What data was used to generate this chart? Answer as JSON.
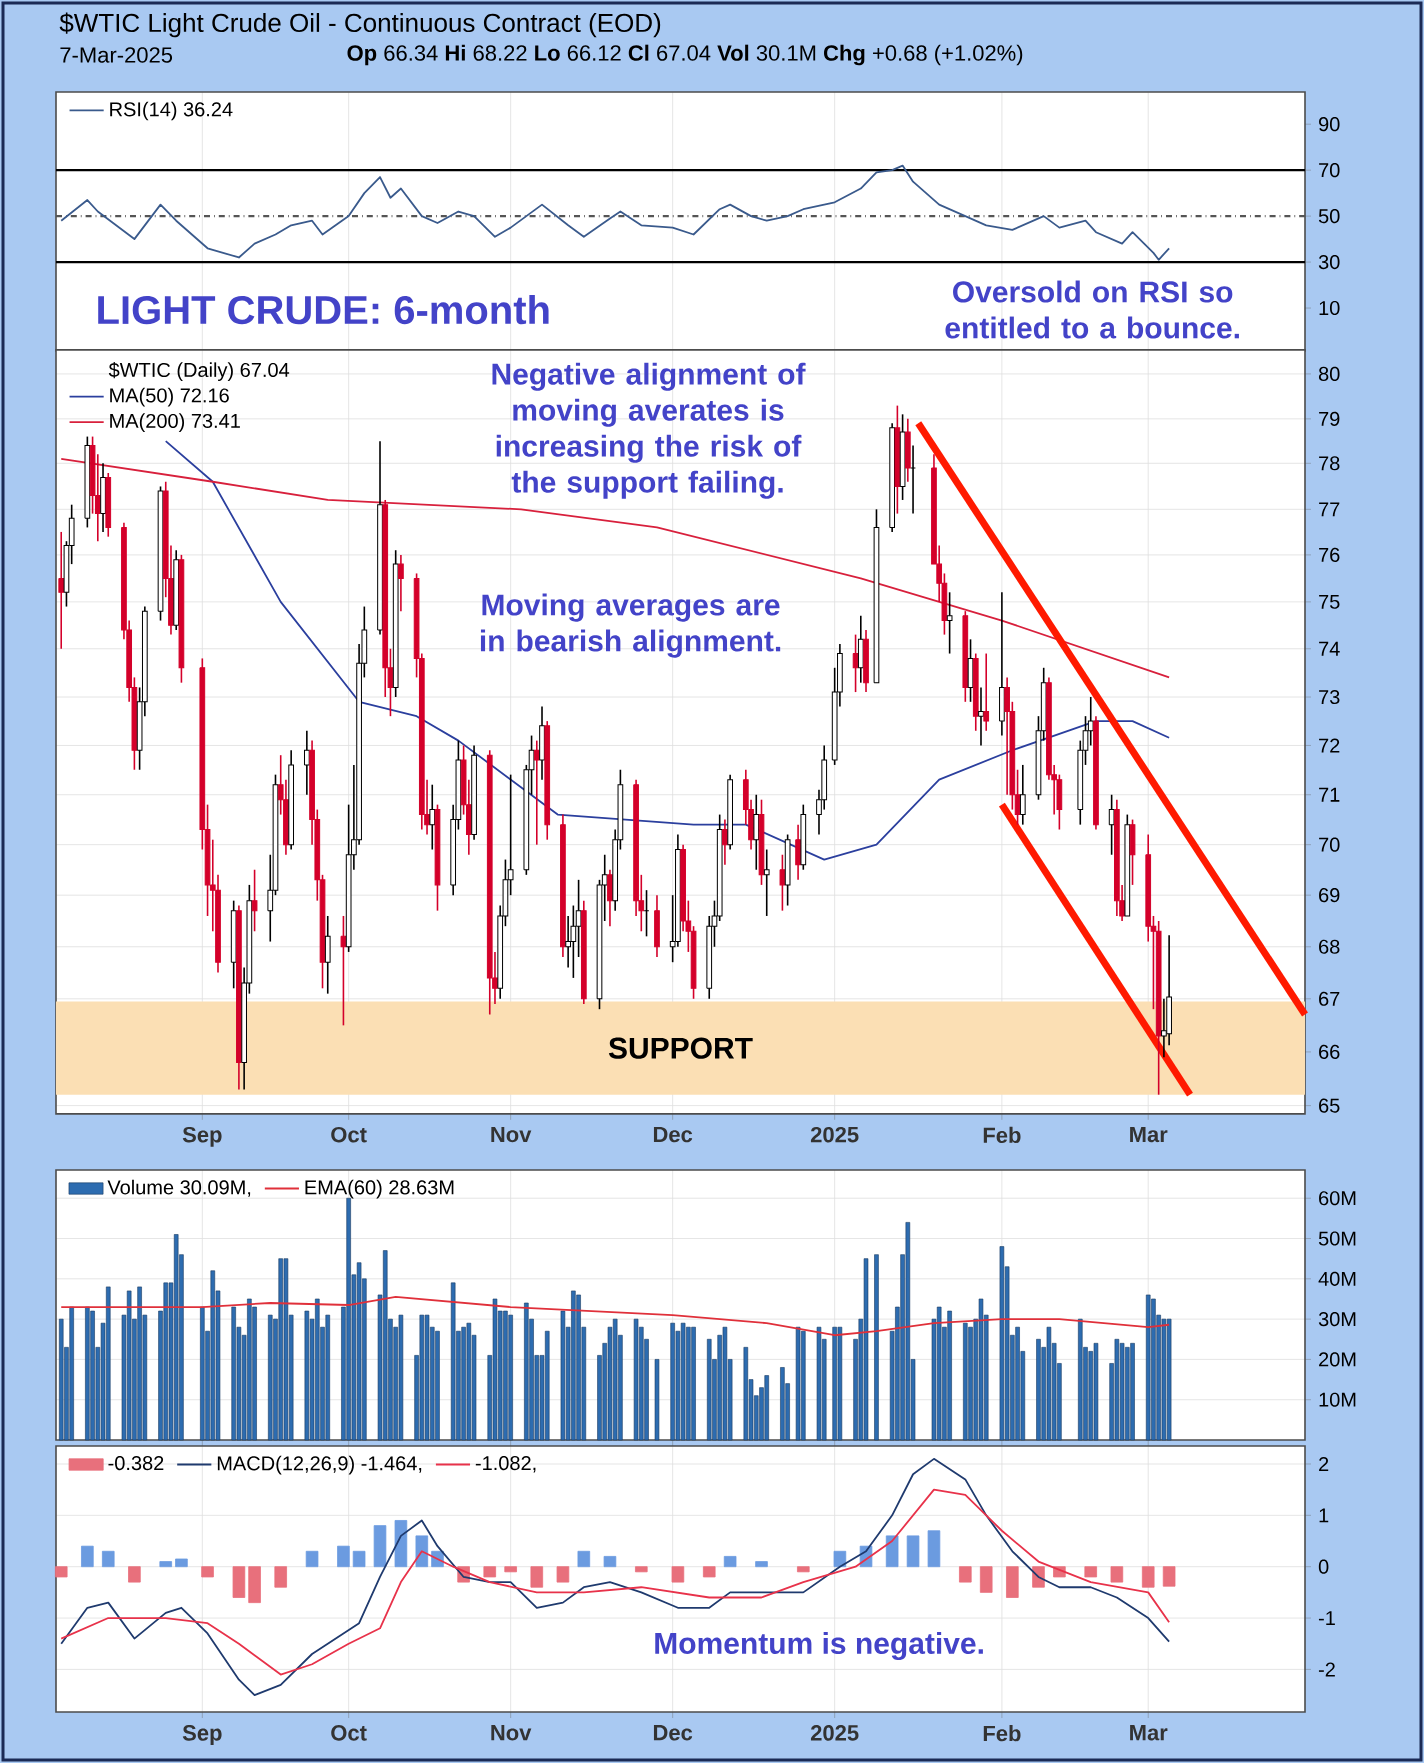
{
  "chart_data": [
    {
      "type": "line",
      "title": "$WTIC Light Crude Oil - Continuous Contract (EOD)",
      "subtitle": "7-Mar-2025",
      "annotations": [
        "**Op** 66.34 **Hi** 68.22 **Lo** 66.12 **Cl** 67.04 **Vol** 30.1M **Chg** +0.68 (+1.02%)",
        "LIGHT CRUDE: 6-month",
        "Oversold on RSI so entitled to a bounce."
      ],
      "xlim": [
        "2024-08-06",
        "2025-04-02"
      ],
      "xticks": [
        {
          "value": "2024-09-03",
          "label": null
        },
        {
          "value": "2024-10-01",
          "label": null
        },
        {
          "value": "2024-11-01",
          "label": null
        },
        {
          "value": "2024-12-02",
          "label": null
        },
        {
          "value": "2025-01-02",
          "label": null
        },
        {
          "value": "2025-02-03",
          "label": null
        },
        {
          "value": "2025-03-03",
          "label": null
        }
      ],
      "ylim": [
        -8.7,
        104
      ],
      "yticks": [
        10,
        30,
        50,
        70,
        90
      ],
      "tick_labels": "y",
      "grid": "x",
      "legend": "top left",
      "ref_lines": [
        {
          "axis": "y",
          "value": 70,
          "color": "#000000",
          "line_style": "solid"
        },
        {
          "axis": "y",
          "value": 50,
          "color": "#555555",
          "line_style": "dashed"
        },
        {
          "axis": "y",
          "value": 30,
          "color": "#000000",
          "line_style": "solid"
        }
      ],
      "series": [
        {
          "name": "RSI(14) 36.24",
          "color": "#3a5a8c",
          "x": [
            "2024-08-07",
            "2024-08-12",
            "2024-08-14",
            "2024-08-21",
            "2024-08-26",
            "2024-08-29",
            "2024-09-04",
            "2024-09-10",
            "2024-09-13",
            "2024-09-17",
            "2024-09-20",
            "2024-09-24",
            "2024-09-26",
            "2024-10-01",
            "2024-10-04",
            "2024-10-07",
            "2024-10-09",
            "2024-10-11",
            "2024-10-15",
            "2024-10-18",
            "2024-10-22",
            "2024-10-25",
            "2024-10-29",
            "2024-11-01",
            "2024-11-07",
            "2024-11-12",
            "2024-11-15",
            "2024-11-20",
            "2024-11-22",
            "2024-11-26",
            "2024-12-02",
            "2024-12-06",
            "2024-12-11",
            "2024-12-13",
            "2024-12-17",
            "2024-12-20",
            "2024-12-24",
            "2024-12-27",
            "2025-01-02",
            "2025-01-07",
            "2025-01-10",
            "2025-01-13",
            "2025-01-15",
            "2025-01-17",
            "2025-01-22",
            "2025-01-27",
            "2025-01-31",
            "2025-02-05",
            "2025-02-11",
            "2025-02-14",
            "2025-02-19",
            "2025-02-21",
            "2025-02-26",
            "2025-02-28",
            "2025-03-04",
            "2025-03-05",
            "2025-03-07"
          ],
          "values": [
            48,
            57,
            52,
            40,
            55,
            48,
            36,
            32,
            38,
            42,
            46,
            48,
            42,
            50,
            60,
            67,
            58,
            62,
            50,
            47,
            52,
            50,
            41,
            45,
            55,
            46,
            41,
            49,
            52,
            46,
            45,
            42,
            53,
            55,
            50,
            48,
            50,
            53,
            56,
            62,
            69,
            70,
            72,
            65,
            55,
            50,
            46,
            44,
            50,
            45,
            48,
            43,
            38,
            43,
            34,
            31,
            36
          ]
        }
      ]
    },
    {
      "type": "candlestick",
      "legend_title": "$WTIC (Daily) 67.04",
      "annotations": [
        "Negative alignment of moving averates is increasing the risk of the support failing.",
        "Moving averages are in bearish alignment."
      ],
      "xlim": [
        "2024-08-06",
        "2025-04-02"
      ],
      "xticks": [
        {
          "value": "2024-09-03",
          "label": "Sep"
        },
        {
          "value": "2024-10-01",
          "label": "Oct"
        },
        {
          "value": "2024-11-01",
          "label": "Nov"
        },
        {
          "value": "2024-12-02",
          "label": "Dec"
        },
        {
          "value": "2025-01-02",
          "label": "**2025**"
        },
        {
          "value": "2025-02-03",
          "label": "Feb"
        },
        {
          "value": "2025-03-03",
          "label": "Mar"
        }
      ],
      "ylim": [
        64.85,
        80.55
      ],
      "yticks": [
        65,
        66,
        67,
        68,
        69,
        70,
        71,
        72,
        73,
        74,
        75,
        76,
        77,
        78,
        79,
        80
      ],
      "log": "y",
      "grid": true,
      "legend": "top left",
      "bands": [
        {
          "axis": "y",
          "from": 65.2,
          "to": 66.95,
          "label": "SUPPORT",
          "color": "#fbdfb4"
        }
      ],
      "x": [
        "2024-08-07",
        "2024-08-08",
        "2024-08-09",
        "2024-08-12",
        "2024-08-13",
        "2024-08-14",
        "2024-08-15",
        "2024-08-16",
        "2024-08-19",
        "2024-08-20",
        "2024-08-21",
        "2024-08-22",
        "2024-08-23",
        "2024-08-26",
        "2024-08-27",
        "2024-08-28",
        "2024-08-29",
        "2024-08-30",
        "2024-09-03",
        "2024-09-04",
        "2024-09-05",
        "2024-09-06",
        "2024-09-09",
        "2024-09-10",
        "2024-09-11",
        "2024-09-12",
        "2024-09-13",
        "2024-09-16",
        "2024-09-17",
        "2024-09-18",
        "2024-09-19",
        "2024-09-20",
        "2024-09-23",
        "2024-09-24",
        "2024-09-25",
        "2024-09-26",
        "2024-09-27",
        "2024-09-30",
        "2024-10-01",
        "2024-10-02",
        "2024-10-03",
        "2024-10-04",
        "2024-10-07",
        "2024-10-08",
        "2024-10-09",
        "2024-10-10",
        "2024-10-11",
        "2024-10-14",
        "2024-10-15",
        "2024-10-16",
        "2024-10-17",
        "2024-10-18",
        "2024-10-21",
        "2024-10-22",
        "2024-10-23",
        "2024-10-24",
        "2024-10-25",
        "2024-10-28",
        "2024-10-29",
        "2024-10-30",
        "2024-10-31",
        "2024-11-01",
        "2024-11-04",
        "2024-11-05",
        "2024-11-06",
        "2024-11-07",
        "2024-11-08",
        "2024-11-11",
        "2024-11-12",
        "2024-11-13",
        "2024-11-14",
        "2024-11-15",
        "2024-11-18",
        "2024-11-19",
        "2024-11-20",
        "2024-11-21",
        "2024-11-22",
        "2024-11-25",
        "2024-11-26",
        "2024-11-27",
        "2024-11-29",
        "2024-12-02",
        "2024-12-03",
        "2024-12-04",
        "2024-12-05",
        "2024-12-06",
        "2024-12-09",
        "2024-12-10",
        "2024-12-11",
        "2024-12-12",
        "2024-12-13",
        "2024-12-16",
        "2024-12-17",
        "2024-12-18",
        "2024-12-19",
        "2024-12-20",
        "2024-12-23",
        "2024-12-24",
        "2024-12-26",
        "2024-12-27",
        "2024-12-30",
        "2024-12-31",
        "2025-01-02",
        "2025-01-03",
        "2025-01-06",
        "2025-01-07",
        "2025-01-08",
        "2025-01-10",
        "2025-01-13",
        "2025-01-14",
        "2025-01-15",
        "2025-01-16",
        "2025-01-17",
        "2025-01-21",
        "2025-01-22",
        "2025-01-23",
        "2025-01-24",
        "2025-01-27",
        "2025-01-28",
        "2025-01-29",
        "2025-01-30",
        "2025-01-31",
        "2025-02-03",
        "2025-02-04",
        "2025-02-05",
        "2025-02-06",
        "2025-02-07",
        "2025-02-10",
        "2025-02-11",
        "2025-02-12",
        "2025-02-13",
        "2025-02-14",
        "2025-02-18",
        "2025-02-19",
        "2025-02-20",
        "2025-02-21",
        "2025-02-24",
        "2025-02-25",
        "2025-02-26",
        "2025-02-27",
        "2025-02-28",
        "2025-03-03",
        "2025-03-04",
        "2025-03-05",
        "2025-03-06",
        "2025-03-07"
      ],
      "ohlc": [
        [
          75.5,
          76.5,
          74.0,
          75.2
        ],
        [
          75.2,
          76.3,
          74.9,
          76.2
        ],
        [
          76.2,
          77.1,
          75.8,
          76.8
        ],
        [
          76.8,
          78.6,
          76.6,
          78.4
        ],
        [
          78.4,
          78.6,
          76.9,
          77.3
        ],
        [
          77.3,
          78.2,
          76.3,
          76.9
        ],
        [
          76.9,
          78.0,
          76.5,
          77.7
        ],
        [
          77.7,
          77.8,
          76.4,
          76.6
        ],
        [
          76.6,
          76.7,
          74.2,
          74.4
        ],
        [
          74.4,
          74.6,
          72.9,
          73.2
        ],
        [
          73.2,
          73.4,
          71.5,
          71.9
        ],
        [
          71.9,
          73.2,
          71.5,
          72.9
        ],
        [
          72.9,
          74.9,
          72.6,
          74.8
        ],
        [
          74.8,
          77.5,
          74.6,
          77.4
        ],
        [
          77.4,
          77.6,
          75.1,
          75.5
        ],
        [
          75.5,
          76.2,
          74.3,
          74.5
        ],
        [
          74.5,
          76.1,
          74.4,
          75.9
        ],
        [
          75.9,
          76.0,
          73.3,
          73.6
        ],
        [
          73.6,
          73.8,
          69.9,
          70.3
        ],
        [
          70.3,
          70.8,
          68.6,
          69.2
        ],
        [
          69.2,
          70.1,
          68.3,
          69.1
        ],
        [
          69.1,
          69.4,
          67.5,
          67.7
        ],
        [
          67.7,
          68.9,
          67.2,
          68.7
        ],
        [
          68.7,
          68.8,
          65.3,
          65.8
        ],
        [
          65.8,
          67.6,
          65.3,
          67.3
        ],
        [
          67.3,
          69.2,
          67.1,
          68.9
        ],
        [
          68.9,
          69.5,
          68.3,
          68.7
        ],
        [
          68.7,
          69.8,
          68.1,
          69.1
        ],
        [
          69.1,
          71.4,
          69.0,
          71.2
        ],
        [
          71.2,
          71.8,
          70.6,
          70.9
        ],
        [
          70.9,
          71.3,
          69.8,
          70.0
        ],
        [
          70.0,
          71.9,
          69.9,
          71.6
        ],
        [
          71.6,
          72.3,
          71.0,
          71.9
        ],
        [
          71.9,
          72.1,
          70.0,
          70.5
        ],
        [
          70.5,
          70.7,
          68.9,
          69.3
        ],
        [
          69.3,
          69.4,
          67.2,
          67.7
        ],
        [
          67.7,
          68.6,
          67.1,
          68.2
        ],
        [
          68.2,
          68.6,
          66.5,
          68.0
        ],
        [
          68.0,
          70.8,
          67.9,
          69.8
        ],
        [
          69.8,
          71.6,
          69.5,
          70.1
        ],
        [
          70.1,
          74.1,
          70.0,
          73.7
        ],
        [
          73.7,
          74.9,
          73.4,
          74.4
        ],
        [
          74.4,
          78.5,
          74.3,
          77.1
        ],
        [
          77.1,
          77.2,
          73.0,
          73.6
        ],
        [
          73.6,
          74.0,
          72.6,
          73.2
        ],
        [
          73.2,
          76.1,
          73.0,
          75.8
        ],
        [
          75.8,
          76.0,
          74.8,
          75.5
        ],
        [
          75.5,
          75.6,
          73.4,
          73.8
        ],
        [
          73.8,
          73.9,
          70.3,
          70.6
        ],
        [
          70.6,
          71.3,
          70.2,
          70.4
        ],
        [
          70.4,
          71.2,
          69.9,
          70.7
        ],
        [
          70.7,
          70.8,
          68.7,
          69.2
        ],
        [
          69.2,
          70.8,
          69.0,
          70.5
        ],
        [
          70.5,
          72.1,
          70.3,
          71.7
        ],
        [
          71.7,
          72.0,
          70.6,
          70.8
        ],
        [
          70.8,
          71.3,
          69.8,
          70.2
        ],
        [
          70.2,
          72.0,
          70.1,
          71.8
        ],
        [
          71.8,
          71.9,
          66.7,
          67.4
        ],
        [
          67.4,
          67.9,
          66.9,
          67.2
        ],
        [
          67.2,
          68.8,
          67.0,
          68.6
        ],
        [
          68.6,
          69.7,
          68.4,
          69.3
        ],
        [
          69.3,
          71.4,
          69.0,
          69.5
        ],
        [
          69.5,
          71.6,
          69.4,
          71.5
        ],
        [
          71.5,
          72.2,
          71.0,
          71.9
        ],
        [
          71.9,
          72.1,
          70.0,
          71.7
        ],
        [
          71.7,
          72.8,
          71.3,
          72.4
        ],
        [
          72.4,
          72.5,
          70.1,
          70.4
        ],
        [
          70.4,
          70.6,
          67.8,
          68.0
        ],
        [
          68.0,
          68.6,
          67.6,
          68.1
        ],
        [
          68.1,
          68.8,
          67.4,
          68.4
        ],
        [
          68.4,
          69.3,
          67.8,
          68.7
        ],
        [
          68.7,
          68.9,
          66.9,
          67.0
        ],
        [
          67.0,
          69.3,
          66.8,
          69.2
        ],
        [
          69.2,
          69.8,
          68.5,
          69.4
        ],
        [
          69.4,
          69.5,
          68.4,
          68.9
        ],
        [
          68.9,
          70.3,
          68.7,
          70.1
        ],
        [
          70.1,
          71.5,
          69.9,
          71.2
        ],
        [
          71.2,
          71.3,
          68.6,
          68.9
        ],
        [
          68.9,
          69.4,
          68.3,
          68.7
        ],
        [
          68.7,
          69.1,
          68.2,
          68.7
        ],
        [
          68.7,
          69.0,
          67.8,
          68.0
        ],
        [
          68.0,
          69.0,
          67.7,
          68.1
        ],
        [
          68.1,
          70.2,
          68.0,
          69.9
        ],
        [
          69.9,
          70.0,
          68.3,
          68.5
        ],
        [
          68.5,
          68.9,
          67.9,
          68.3
        ],
        [
          68.3,
          68.4,
          67.0,
          67.2
        ],
        [
          67.2,
          68.6,
          67.0,
          68.4
        ],
        [
          68.4,
          68.9,
          68.0,
          68.6
        ],
        [
          68.6,
          70.6,
          68.5,
          70.3
        ],
        [
          70.3,
          70.5,
          69.6,
          70.0
        ],
        [
          70.0,
          71.4,
          69.9,
          71.3
        ],
        [
          71.3,
          71.5,
          70.4,
          70.7
        ],
        [
          70.7,
          70.9,
          69.9,
          70.1
        ],
        [
          70.1,
          71.0,
          69.5,
          70.6
        ],
        [
          70.6,
          70.9,
          69.2,
          69.4
        ],
        [
          69.4,
          69.9,
          68.6,
          69.5
        ],
        [
          69.5,
          69.8,
          68.7,
          69.2
        ],
        [
          69.2,
          70.2,
          68.8,
          70.1
        ],
        [
          70.1,
          70.4,
          69.3,
          69.6
        ],
        [
          69.6,
          70.8,
          69.5,
          70.6
        ],
        [
          70.6,
          71.1,
          70.2,
          70.9
        ],
        [
          70.9,
          72.0,
          70.7,
          71.7
        ],
        [
          71.7,
          73.6,
          71.6,
          73.1
        ],
        [
          73.1,
          74.1,
          72.8,
          73.9
        ],
        [
          73.9,
          74.3,
          73.1,
          73.6
        ],
        [
          73.6,
          74.7,
          73.3,
          74.2
        ],
        [
          74.2,
          74.4,
          73.1,
          73.3
        ],
        [
          73.3,
          77.0,
          73.3,
          76.6
        ],
        [
          76.6,
          78.9,
          76.5,
          78.8
        ],
        [
          78.8,
          79.3,
          76.9,
          77.5
        ],
        [
          77.5,
          79.1,
          77.2,
          78.7
        ],
        [
          78.7,
          79.0,
          77.6,
          77.9
        ],
        [
          77.9,
          78.4,
          76.9,
          77.9
        ],
        [
          77.9,
          78.2,
          75.8,
          75.8
        ],
        [
          75.8,
          76.2,
          75.0,
          75.4
        ],
        [
          75.4,
          75.6,
          74.3,
          74.6
        ],
        [
          74.6,
          75.2,
          73.9,
          74.7
        ],
        [
          74.7,
          74.8,
          72.9,
          73.2
        ],
        [
          73.2,
          74.2,
          72.9,
          73.8
        ],
        [
          73.8,
          73.9,
          72.3,
          72.6
        ],
        [
          72.6,
          73.2,
          72.0,
          72.7
        ],
        [
          72.7,
          73.9,
          72.3,
          72.5
        ],
        [
          72.5,
          75.2,
          72.2,
          73.2
        ],
        [
          73.2,
          73.4,
          71.0,
          72.7
        ],
        [
          72.7,
          72.9,
          70.7,
          71.0
        ],
        [
          71.0,
          71.5,
          70.4,
          70.6
        ],
        [
          70.6,
          71.6,
          70.4,
          71.0
        ],
        [
          71.0,
          72.6,
          70.9,
          72.3
        ],
        [
          72.3,
          73.6,
          72.1,
          73.3
        ],
        [
          73.3,
          73.4,
          71.3,
          71.4
        ],
        [
          71.4,
          71.6,
          70.6,
          71.3
        ],
        [
          71.3,
          71.4,
          70.3,
          70.7
        ],
        [
          70.7,
          72.1,
          70.4,
          71.9
        ],
        [
          71.9,
          72.6,
          71.6,
          72.3
        ],
        [
          72.3,
          73.0,
          72.0,
          72.5
        ],
        [
          72.5,
          72.6,
          70.3,
          70.4
        ],
        [
          70.4,
          71.0,
          69.8,
          70.7
        ],
        [
          70.7,
          70.9,
          68.6,
          68.9
        ],
        [
          68.9,
          69.2,
          68.5,
          68.6
        ],
        [
          68.6,
          70.6,
          68.6,
          70.4
        ],
        [
          70.4,
          70.5,
          69.2,
          69.8
        ],
        [
          69.8,
          70.2,
          68.1,
          68.4
        ],
        [
          68.4,
          68.6,
          66.8,
          68.3
        ],
        [
          68.3,
          68.5,
          65.2,
          66.3
        ],
        [
          66.3,
          67.0,
          65.9,
          66.4
        ],
        [
          66.34,
          68.22,
          66.12,
          67.04
        ]
      ],
      "series": [
        {
          "type": "line",
          "name": "MA(50) 72.16",
          "color": "#2b3f9e",
          "x": [
            "2024-08-27",
            "2024-09-05",
            "2024-09-18",
            "2024-10-03",
            "2024-10-14",
            "2024-10-22",
            "2024-11-10",
            "2024-12-06",
            "2024-12-16",
            "2024-12-31",
            "2025-01-10",
            "2025-01-22",
            "2025-02-05",
            "2025-02-21",
            "2025-02-28",
            "2025-03-07"
          ],
          "values": [
            78.5,
            77.6,
            75.0,
            72.9,
            72.6,
            72.1,
            70.6,
            70.4,
            70.4,
            69.7,
            70.0,
            71.3,
            71.9,
            72.5,
            72.5,
            72.16
          ]
        },
        {
          "type": "line",
          "name": "MA(200) 73.41",
          "color": "#d8203c",
          "x": [
            "2024-08-07",
            "2024-09-05",
            "2024-09-27",
            "2024-11-03",
            "2024-11-29",
            "2025-01-07",
            "2025-02-03",
            "2025-03-07"
          ],
          "values": [
            78.1,
            77.6,
            77.2,
            77.0,
            76.6,
            75.5,
            74.6,
            73.41
          ]
        },
        {
          "type": "line",
          "color": "#ff1a00",
          "x": [
            "2025-01-18",
            "2025-04-02"
          ],
          "values": [
            78.9,
            66.7
          ]
        },
        {
          "type": "line",
          "color": "#ff1a00",
          "x": [
            "2025-02-03",
            "2025-03-11"
          ],
          "values": [
            70.8,
            65.2
          ]
        }
      ]
    },
    {
      "type": "bar",
      "xlim": [
        "2024-08-06",
        "2025-04-02"
      ],
      "xticks": [
        {
          "value": "2024-09-03",
          "label": null
        },
        {
          "value": "2024-10-01",
          "label": null
        },
        {
          "value": "2024-11-01",
          "label": null
        },
        {
          "value": "2024-12-02",
          "label": null
        },
        {
          "value": "2025-01-02",
          "label": null
        },
        {
          "value": "2025-02-03",
          "label": null
        },
        {
          "value": "2025-03-03",
          "label": null
        }
      ],
      "ylim": [
        0,
        67
      ],
      "yticks": [
        {
          "value": 10,
          "label": "10M"
        },
        {
          "value": 20,
          "label": "20M"
        },
        {
          "value": 30,
          "label": "30M"
        },
        {
          "value": 40,
          "label": "40M"
        },
        {
          "value": 50,
          "label": "50M"
        },
        {
          "value": 60,
          "label": "60M"
        }
      ],
      "tick_labels": "y",
      "grid": true,
      "legend": "top left",
      "series": [
        {
          "type": "bar",
          "name": "Volume 30.09M,",
          "color": "#2d6cb0",
          "x": [
            "2024-08-07",
            "2024-08-08",
            "2024-08-09",
            "2024-08-12",
            "2024-08-13",
            "2024-08-14",
            "2024-08-15",
            "2024-08-16",
            "2024-08-19",
            "2024-08-20",
            "2024-08-21",
            "2024-08-22",
            "2024-08-23",
            "2024-08-26",
            "2024-08-27",
            "2024-08-28",
            "2024-08-29",
            "2024-08-30",
            "2024-09-03",
            "2024-09-04",
            "2024-09-05",
            "2024-09-06",
            "2024-09-09",
            "2024-09-10",
            "2024-09-11",
            "2024-09-12",
            "2024-09-13",
            "2024-09-16",
            "2024-09-17",
            "2024-09-18",
            "2024-09-19",
            "2024-09-20",
            "2024-09-23",
            "2024-09-24",
            "2024-09-25",
            "2024-09-26",
            "2024-09-27",
            "2024-09-30",
            "2024-10-01",
            "2024-10-02",
            "2024-10-03",
            "2024-10-04",
            "2024-10-07",
            "2024-10-08",
            "2024-10-09",
            "2024-10-10",
            "2024-10-11",
            "2024-10-14",
            "2024-10-15",
            "2024-10-16",
            "2024-10-17",
            "2024-10-18",
            "2024-10-21",
            "2024-10-22",
            "2024-10-23",
            "2024-10-24",
            "2024-10-25",
            "2024-10-28",
            "2024-10-29",
            "2024-10-30",
            "2024-10-31",
            "2024-11-01",
            "2024-11-04",
            "2024-11-05",
            "2024-11-06",
            "2024-11-07",
            "2024-11-08",
            "2024-11-11",
            "2024-11-12",
            "2024-11-13",
            "2024-11-14",
            "2024-11-15",
            "2024-11-18",
            "2024-11-19",
            "2024-11-20",
            "2024-11-21",
            "2024-11-22",
            "2024-11-25",
            "2024-11-26",
            "2024-11-27",
            "2024-11-29",
            "2024-12-02",
            "2024-12-03",
            "2024-12-04",
            "2024-12-05",
            "2024-12-06",
            "2024-12-09",
            "2024-12-10",
            "2024-12-11",
            "2024-12-12",
            "2024-12-13",
            "2024-12-16",
            "2024-12-17",
            "2024-12-18",
            "2024-12-19",
            "2024-12-20",
            "2024-12-23",
            "2024-12-24",
            "2024-12-26",
            "2024-12-27",
            "2024-12-30",
            "2024-12-31",
            "2025-01-02",
            "2025-01-03",
            "2025-01-06",
            "2025-01-07",
            "2025-01-08",
            "2025-01-10",
            "2025-01-13",
            "2025-01-14",
            "2025-01-15",
            "2025-01-16",
            "2025-01-17",
            "2025-01-21",
            "2025-01-22",
            "2025-01-23",
            "2025-01-24",
            "2025-01-27",
            "2025-01-28",
            "2025-01-29",
            "2025-01-30",
            "2025-01-31",
            "2025-02-03",
            "2025-02-04",
            "2025-02-05",
            "2025-02-06",
            "2025-02-07",
            "2025-02-10",
            "2025-02-11",
            "2025-02-12",
            "2025-02-13",
            "2025-02-14",
            "2025-02-18",
            "2025-02-19",
            "2025-02-20",
            "2025-02-21",
            "2025-02-24",
            "2025-02-25",
            "2025-02-26",
            "2025-02-27",
            "2025-02-28",
            "2025-03-03",
            "2025-03-04",
            "2025-03-05",
            "2025-03-06",
            "2025-03-07"
          ],
          "values": [
            30,
            23,
            33,
            33,
            32,
            23,
            29,
            38,
            31,
            37,
            30,
            38,
            31,
            32,
            39,
            39,
            51,
            46,
            33,
            27,
            42,
            37,
            33,
            28,
            26,
            35,
            33,
            31,
            30,
            45,
            45,
            31,
            32,
            30,
            35,
            28,
            31,
            33,
            60,
            41,
            44,
            40,
            36,
            47,
            30,
            28,
            31,
            21,
            31,
            31,
            28,
            27,
            39,
            27,
            28,
            29,
            26,
            21,
            35,
            32,
            32,
            31,
            34,
            30,
            21,
            21,
            27,
            32,
            28,
            37,
            36,
            28,
            21,
            24,
            28,
            30,
            26,
            30,
            28,
            25,
            20,
            29,
            27,
            29,
            28,
            28,
            25,
            20,
            26,
            28,
            20,
            23,
            15,
            11,
            13,
            16,
            18,
            14,
            28,
            27,
            28,
            25,
            28,
            28,
            25,
            30,
            45,
            46,
            27,
            33,
            46,
            54,
            20,
            30,
            33,
            28,
            32,
            29,
            28,
            30,
            35,
            31,
            48,
            43,
            26,
            28,
            22,
            25,
            23,
            28,
            24,
            19,
            30,
            23,
            22,
            24,
            19,
            25,
            24,
            23,
            24,
            36,
            35,
            31,
            30,
            30
          ]
        },
        {
          "type": "line",
          "name": "EMA(60) 28.63M",
          "color": "#e0303a",
          "x": [
            "2024-08-07",
            "2024-09-03",
            "2024-09-16",
            "2024-10-01",
            "2024-10-10",
            "2024-11-01",
            "2024-12-02",
            "2024-12-20",
            "2025-01-02",
            "2025-01-10",
            "2025-01-21",
            "2025-02-03",
            "2025-02-14",
            "2025-03-03",
            "2025-03-07"
          ],
          "values": [
            33,
            33,
            34,
            33.5,
            35.5,
            33,
            31,
            29,
            26,
            27,
            29,
            30,
            30,
            28,
            28.6
          ]
        }
      ]
    },
    {
      "type": "line",
      "annotations": [
        "Momentum is negative."
      ],
      "xlim": [
        "2024-08-06",
        "2025-04-02"
      ],
      "xticks": [
        {
          "value": "2024-09-03",
          "label": "Sep"
        },
        {
          "value": "2024-10-01",
          "label": "Oct"
        },
        {
          "value": "2024-11-01",
          "label": "Nov"
        },
        {
          "value": "2024-12-02",
          "label": "Dec"
        },
        {
          "value": "2025-01-02",
          "label": "**2025**"
        },
        {
          "value": "2025-02-03",
          "label": "Feb"
        },
        {
          "value": "2025-03-03",
          "label": "Mar"
        }
      ],
      "ylim": [
        -2.83,
        2.35
      ],
      "yticks": [
        -2,
        -1,
        0,
        1,
        2
      ],
      "grid": true,
      "legend": "top left",
      "series": [
        {
          "type": "line",
          "name": "MACD(12,26,9) -1.464,",
          "color": "#1f3a6e",
          "x": [
            "2024-08-07",
            "2024-08-12",
            "2024-08-16",
            "2024-08-21",
            "2024-08-27",
            "2024-08-30",
            "2024-09-04",
            "2024-09-10",
            "2024-09-13",
            "2024-09-18",
            "2024-09-24",
            "2024-09-30",
            "2024-10-03",
            "2024-10-07",
            "2024-10-11",
            "2024-10-15",
            "2024-10-18",
            "2024-10-23",
            "2024-10-28",
            "2024-11-01",
            "2024-11-06",
            "2024-11-11",
            "2024-11-15",
            "2024-11-20",
            "2024-11-26",
            "2024-12-03",
            "2024-12-09",
            "2024-12-13",
            "2024-12-19",
            "2024-12-27",
            "2025-01-03",
            "2025-01-08",
            "2025-01-13",
            "2025-01-17",
            "2025-01-21",
            "2025-01-27",
            "2025-01-31",
            "2025-02-05",
            "2025-02-10",
            "2025-02-14",
            "2025-02-20",
            "2025-02-25",
            "2025-03-03",
            "2025-03-07"
          ],
          "values": [
            -1.5,
            -0.8,
            -0.7,
            -1.4,
            -0.9,
            -0.8,
            -1.3,
            -2.2,
            -2.5,
            -2.3,
            -1.7,
            -1.3,
            -1.1,
            -0.2,
            0.6,
            0.9,
            0.4,
            -0.2,
            -0.3,
            -0.3,
            -0.8,
            -0.7,
            -0.4,
            -0.3,
            -0.5,
            -0.8,
            -0.8,
            -0.5,
            -0.5,
            -0.5,
            0.0,
            0.3,
            1.0,
            1.8,
            2.1,
            1.7,
            1.0,
            0.3,
            -0.2,
            -0.4,
            -0.4,
            -0.6,
            -1.0,
            -1.46
          ]
        },
        {
          "type": "line",
          "name": "-1.082,",
          "color": "#e8324a",
          "x": [
            "2024-08-07",
            "2024-08-16",
            "2024-08-27",
            "2024-09-04",
            "2024-09-10",
            "2024-09-18",
            "2024-09-24",
            "2024-10-01",
            "2024-10-07",
            "2024-10-11",
            "2024-10-15",
            "2024-10-21",
            "2024-10-28",
            "2024-11-06",
            "2024-11-15",
            "2024-11-26",
            "2024-12-09",
            "2024-12-19",
            "2024-12-27",
            "2025-01-06",
            "2025-01-13",
            "2025-01-21",
            "2025-01-27",
            "2025-02-03",
            "2025-02-10",
            "2025-02-20",
            "2025-03-03",
            "2025-03-07"
          ],
          "values": [
            -1.4,
            -1.0,
            -1.0,
            -1.1,
            -1.5,
            -2.1,
            -1.9,
            -1.5,
            -1.2,
            -0.3,
            0.3,
            0.0,
            -0.3,
            -0.5,
            -0.5,
            -0.4,
            -0.6,
            -0.6,
            -0.3,
            0.0,
            0.5,
            1.5,
            1.4,
            0.7,
            0.1,
            -0.3,
            -0.5,
            -1.08
          ]
        },
        {
          "type": "bar",
          "name": "-0.382",
          "x": [
            "2024-08-07",
            "2024-08-12",
            "2024-08-16",
            "2024-08-21",
            "2024-08-27",
            "2024-08-30",
            "2024-09-04",
            "2024-09-10",
            "2024-09-13",
            "2024-09-18",
            "2024-09-24",
            "2024-09-30",
            "2024-10-03",
            "2024-10-07",
            "2024-10-11",
            "2024-10-15",
            "2024-10-18",
            "2024-10-23",
            "2024-10-28",
            "2024-11-01",
            "2024-11-06",
            "2024-11-11",
            "2024-11-15",
            "2024-11-20",
            "2024-11-26",
            "2024-12-03",
            "2024-12-09",
            "2024-12-13",
            "2024-12-19",
            "2024-12-27",
            "2025-01-03",
            "2025-01-08",
            "2025-01-13",
            "2025-01-17",
            "2025-01-21",
            "2025-01-27",
            "2025-01-31",
            "2025-02-05",
            "2025-02-10",
            "2025-02-14",
            "2025-02-20",
            "2025-02-25",
            "2025-03-03",
            "2025-03-07"
          ],
          "values": [
            -0.2,
            0.4,
            0.3,
            -0.3,
            0.1,
            0.15,
            -0.2,
            -0.6,
            -0.7,
            -0.4,
            0.3,
            0.4,
            0.3,
            0.8,
            0.9,
            0.6,
            0.3,
            -0.3,
            -0.2,
            -0.1,
            -0.4,
            -0.3,
            0.3,
            0.2,
            -0.1,
            -0.3,
            -0.2,
            0.2,
            0.1,
            -0.1,
            0.3,
            0.4,
            0.6,
            0.6,
            0.7,
            -0.3,
            -0.5,
            -0.6,
            -0.4,
            -0.2,
            -0.2,
            -0.3,
            -0.4,
            -0.38
          ],
          "colors": [
            "#e8707c",
            "#6b9be0",
            "#6b9be0",
            "#e8707c",
            "#6b9be0",
            "#6b9be0",
            "#e8707c",
            "#e8707c",
            "#e8707c",
            "#e8707c",
            "#6b9be0",
            "#6b9be0",
            "#6b9be0",
            "#6b9be0",
            "#6b9be0",
            "#6b9be0",
            "#6b9be0",
            "#e8707c",
            "#e8707c",
            "#e8707c",
            "#e8707c",
            "#e8707c",
            "#6b9be0",
            "#6b9be0",
            "#e8707c",
            "#e8707c",
            "#e8707c",
            "#6b9be0",
            "#6b9be0",
            "#e8707c",
            "#6b9be0",
            "#6b9be0",
            "#6b9be0",
            "#6b9be0",
            "#6b9be0",
            "#e8707c",
            "#e8707c",
            "#e8707c",
            "#e8707c",
            "#e8707c",
            "#e8707c",
            "#e8707c",
            "#e8707c",
            "#e8707c"
          ]
        }
      ]
    }
  ]
}
